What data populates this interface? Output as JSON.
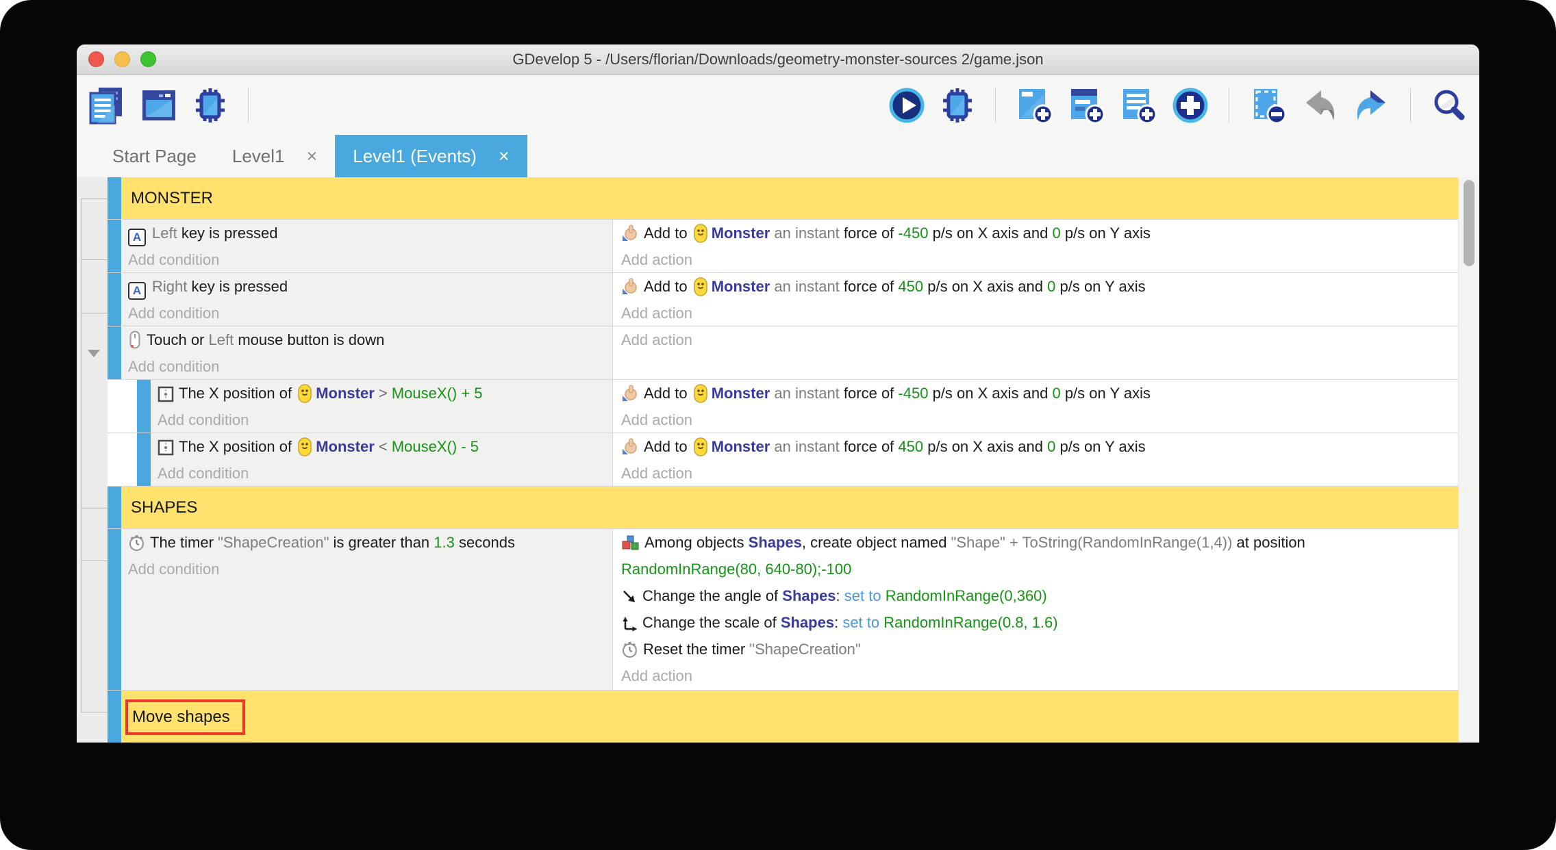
{
  "window": {
    "title": "GDevelop 5 - /Users/florian/Downloads/geometry-monster-sources 2/game.json"
  },
  "toolbar": {
    "left_icons": [
      "project-manager",
      "scene-editor",
      "debugger",
      "|"
    ],
    "right_icons": [
      "play",
      "debugger",
      "|",
      "add-event",
      "add-subevent",
      "add-comment",
      "add-new",
      "|",
      "remove-event",
      "undo",
      "redo",
      "|",
      "search"
    ]
  },
  "tabs": [
    {
      "label": "Start Page",
      "active": false,
      "closable": false
    },
    {
      "label": "Level1",
      "active": false,
      "closable": true
    },
    {
      "label": "Level1 (Events)",
      "active": true,
      "closable": true
    }
  ],
  "labels": {
    "add_condition": "Add condition",
    "add_action": "Add action",
    "close_glyph": "×"
  },
  "colors": {
    "accent_blue": "#49a9de",
    "comment_yellow": "#ffe26e",
    "object_blue": "#3a3a9c",
    "value_green": "#149314",
    "set_to_blue": "#4a97dc",
    "param_gray": "#7d7d7d",
    "selection_red": "#e8392b"
  },
  "events": [
    {
      "type": "comment",
      "text": "MONSTER",
      "selected": false
    },
    {
      "type": "event",
      "indent": 0,
      "conditions": [
        {
          "icon": "key",
          "segments": [
            [
              "param",
              "Left"
            ],
            [
              "plain",
              " key is pressed"
            ]
          ]
        }
      ],
      "condition_placeholder": "Add condition",
      "actions": [
        {
          "icon": "hand",
          "segments": [
            [
              "plain",
              "Add to "
            ],
            [
              "monster-icon",
              ""
            ],
            [
              "object",
              "Monster"
            ],
            [
              "param",
              " an instant "
            ],
            [
              "plain",
              "force of "
            ],
            [
              "value",
              "-450"
            ],
            [
              "plain",
              " p/s on X axis and "
            ],
            [
              "value",
              "0"
            ],
            [
              "plain",
              " p/s on Y axis"
            ]
          ]
        }
      ],
      "action_placeholder": "Add action"
    },
    {
      "type": "event",
      "indent": 0,
      "conditions": [
        {
          "icon": "key",
          "segments": [
            [
              "param",
              "Right"
            ],
            [
              "plain",
              " key is pressed"
            ]
          ]
        }
      ],
      "condition_placeholder": "Add condition",
      "actions": [
        {
          "icon": "hand",
          "segments": [
            [
              "plain",
              "Add to "
            ],
            [
              "monster-icon",
              ""
            ],
            [
              "object",
              "Monster"
            ],
            [
              "param",
              " an instant "
            ],
            [
              "plain",
              "force of "
            ],
            [
              "value",
              "450"
            ],
            [
              "plain",
              " p/s on X axis and "
            ],
            [
              "value",
              "0"
            ],
            [
              "plain",
              " p/s on Y axis"
            ]
          ]
        }
      ],
      "action_placeholder": "Add action"
    },
    {
      "type": "event",
      "indent": 0,
      "expanded": true,
      "conditions": [
        {
          "icon": "mouse",
          "segments": [
            [
              "plain",
              "Touch or "
            ],
            [
              "param",
              "Left"
            ],
            [
              "plain",
              " mouse button is down"
            ]
          ]
        }
      ],
      "condition_placeholder": "Add condition",
      "actions": [],
      "action_placeholder": "Add action"
    },
    {
      "type": "event",
      "indent": 1,
      "conditions": [
        {
          "icon": "position",
          "segments": [
            [
              "plain",
              "The X position of "
            ],
            [
              "monster-icon",
              ""
            ],
            [
              "object",
              "Monster"
            ],
            [
              "op",
              "  >  "
            ],
            [
              "value",
              "MouseX() + 5"
            ]
          ]
        }
      ],
      "condition_placeholder": "Add condition",
      "actions": [
        {
          "icon": "hand",
          "segments": [
            [
              "plain",
              "Add to "
            ],
            [
              "monster-icon",
              ""
            ],
            [
              "object",
              "Monster"
            ],
            [
              "param",
              " an instant "
            ],
            [
              "plain",
              "force of "
            ],
            [
              "value",
              "-450"
            ],
            [
              "plain",
              " p/s on X axis and "
            ],
            [
              "value",
              "0"
            ],
            [
              "plain",
              " p/s on Y axis"
            ]
          ]
        }
      ],
      "action_placeholder": "Add action"
    },
    {
      "type": "event",
      "indent": 1,
      "conditions": [
        {
          "icon": "position",
          "segments": [
            [
              "plain",
              "The X position of "
            ],
            [
              "monster-icon",
              ""
            ],
            [
              "object",
              "Monster"
            ],
            [
              "op",
              "  <  "
            ],
            [
              "value",
              "MouseX() - 5"
            ]
          ]
        }
      ],
      "condition_placeholder": "Add condition",
      "actions": [
        {
          "icon": "hand",
          "segments": [
            [
              "plain",
              "Add to "
            ],
            [
              "monster-icon",
              ""
            ],
            [
              "object",
              "Monster"
            ],
            [
              "param",
              " an instant "
            ],
            [
              "plain",
              "force of "
            ],
            [
              "value",
              "450"
            ],
            [
              "plain",
              " p/s on X axis and "
            ],
            [
              "value",
              "0"
            ],
            [
              "plain",
              " p/s on Y axis"
            ]
          ]
        }
      ],
      "action_placeholder": "Add action"
    },
    {
      "type": "comment",
      "text": "SHAPES",
      "selected": false
    },
    {
      "type": "event",
      "indent": 0,
      "tall": true,
      "conditions": [
        {
          "icon": "timer",
          "segments": [
            [
              "plain",
              "The timer "
            ],
            [
              "param",
              "\"ShapeCreation\""
            ],
            [
              "plain",
              " is greater than "
            ],
            [
              "value",
              "1.3"
            ],
            [
              "plain",
              " seconds"
            ]
          ]
        }
      ],
      "condition_placeholder": "Add condition",
      "actions": [
        {
          "icon": "create",
          "segments": [
            [
              "plain",
              "Among objects "
            ],
            [
              "object",
              "Shapes"
            ],
            [
              "plain",
              ", create object named "
            ],
            [
              "param",
              "\"Shape\" + ToString(RandomInRange(1,4))"
            ],
            [
              "plain",
              " at position "
            ],
            [
              "value",
              "RandomInRange(80, 640-80);-100"
            ]
          ]
        },
        {
          "icon": "angle",
          "segments": [
            [
              "plain",
              "Change the angle of "
            ],
            [
              "object",
              "Shapes"
            ],
            [
              "plain",
              ": "
            ],
            [
              "setto",
              "set to "
            ],
            [
              "value",
              "RandomInRange(0,360)"
            ]
          ]
        },
        {
          "icon": "scale",
          "segments": [
            [
              "plain",
              "Change the scale of "
            ],
            [
              "object",
              "Shapes"
            ],
            [
              "plain",
              ": "
            ],
            [
              "setto",
              "set to "
            ],
            [
              "value",
              "RandomInRange(0.8, 1.6)"
            ]
          ]
        },
        {
          "icon": "timer",
          "segments": [
            [
              "plain",
              "Reset the timer "
            ],
            [
              "param",
              "\"ShapeCreation\""
            ]
          ]
        }
      ],
      "action_placeholder": "Add action"
    },
    {
      "type": "comment",
      "text": "Move shapes",
      "selected": true
    }
  ]
}
